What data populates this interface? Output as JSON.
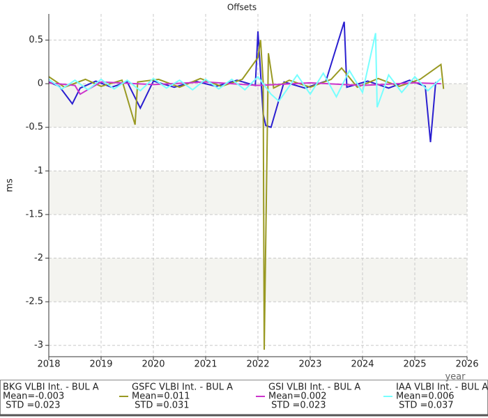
{
  "chart_data": {
    "type": "line",
    "title": "Offsets",
    "y_label": "ms",
    "x_label": "year",
    "xlim": [
      2018,
      2026
    ],
    "xticks": [
      2018,
      2019,
      2020,
      2021,
      2022,
      2023,
      2024,
      2025,
      2026
    ],
    "ylim": [
      -3.13,
      0.8
    ],
    "yticks": [
      0.5,
      0,
      -0.5,
      -1,
      -1.5,
      -2,
      -2.5,
      -3
    ],
    "grid": true,
    "series": [
      {
        "name": "BKG VLBI Int. - BUL A",
        "color": "#2a1fd0",
        "stats": [
          "Mean=-0.003",
          " STD =0.023"
        ],
        "x": [
          2018.0,
          2018.2,
          2018.45,
          2018.6,
          2018.9,
          2019.2,
          2019.5,
          2019.75,
          2020.0,
          2020.4,
          2020.8,
          2021.2,
          2021.6,
          2021.95,
          2022.0,
          2022.1,
          2022.15,
          2022.25,
          2022.5,
          2022.9,
          2023.3,
          2023.65,
          2023.7,
          2024.1,
          2024.5,
          2024.9,
          2025.2,
          2025.3,
          2025.4
        ],
        "values": [
          0.02,
          -0.03,
          -0.23,
          -0.05,
          0.03,
          -0.04,
          0.02,
          -0.28,
          0.03,
          -0.04,
          0.03,
          -0.03,
          0.04,
          -0.02,
          0.6,
          -0.35,
          -0.48,
          -0.5,
          0.02,
          -0.05,
          0.03,
          0.71,
          -0.04,
          0.03,
          -0.05,
          0.04,
          -0.03,
          -0.67,
          0.02
        ]
      },
      {
        "name": "GSFC VLBI Int. - BUL A",
        "color": "#999922",
        "stats": [
          "Mean=0.011",
          " STD =0.031"
        ],
        "x": [
          2018.0,
          2018.3,
          2018.7,
          2019.0,
          2019.4,
          2019.65,
          2019.7,
          2020.1,
          2020.5,
          2020.9,
          2021.3,
          2021.7,
          2022.0,
          2022.05,
          2022.1,
          2022.12,
          2022.2,
          2022.3,
          2022.6,
          2023.0,
          2023.4,
          2023.6,
          2023.9,
          2024.3,
          2024.7,
          2025.1,
          2025.5,
          2025.55
        ],
        "values": [
          0.08,
          -0.04,
          0.05,
          -0.03,
          0.04,
          -0.47,
          0.02,
          0.05,
          -0.04,
          0.06,
          -0.03,
          0.05,
          0.3,
          0.5,
          0.02,
          -3.05,
          0.35,
          -0.05,
          0.04,
          -0.04,
          0.05,
          0.18,
          -0.04,
          0.06,
          -0.03,
          0.05,
          0.22,
          -0.06
        ]
      },
      {
        "name": "GSI VLBI Int. - BUL A",
        "color": "#cc33cc",
        "stats": [
          "Mean=0.002",
          " STD =0.023"
        ],
        "x": [
          2018.0,
          2018.5,
          2018.6,
          2019.0,
          2020.0,
          2021.0,
          2022.0,
          2023.0,
          2024.0,
          2025.0,
          2025.5
        ],
        "values": [
          0.01,
          -0.02,
          -0.12,
          0.02,
          -0.01,
          0.02,
          -0.02,
          0.01,
          -0.02,
          0.01,
          0.0
        ]
      },
      {
        "name": "IAA VLBI Int. - BUL A",
        "color": "#77ffff",
        "stats": [
          "Mean=0.006",
          " STD =0.037"
        ],
        "x": [
          2018.0,
          2018.25,
          2018.5,
          2018.75,
          2019.0,
          2019.25,
          2019.5,
          2019.75,
          2020.0,
          2020.25,
          2020.5,
          2020.75,
          2021.0,
          2021.25,
          2021.5,
          2021.75,
          2022.0,
          2022.25,
          2022.4,
          2022.75,
          2023.0,
          2023.25,
          2023.5,
          2023.75,
          2024.0,
          2024.25,
          2024.28,
          2024.5,
          2024.75,
          2025.0,
          2025.25,
          2025.5
        ],
        "values": [
          0.05,
          -0.06,
          0.04,
          -0.07,
          0.05,
          -0.06,
          0.04,
          -0.08,
          0.06,
          -0.05,
          0.04,
          -0.07,
          0.05,
          -0.06,
          0.05,
          -0.07,
          0.08,
          -0.12,
          -0.2,
          0.1,
          -0.12,
          0.12,
          -0.15,
          0.15,
          -0.1,
          0.58,
          -0.27,
          0.1,
          -0.1,
          0.08,
          -0.08,
          0.06
        ]
      }
    ]
  }
}
